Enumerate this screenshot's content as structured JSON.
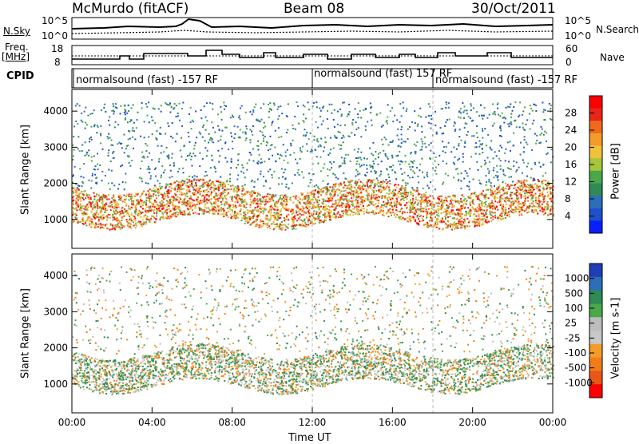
{
  "header": {
    "station": "McMurdo (fitACF)",
    "beam": "Beam 08",
    "date": "30/Oct/2011"
  },
  "top_panels": {
    "nsky_label": "N.Sky",
    "nsky_ticks": [
      "10^5",
      "10^0"
    ],
    "nsearch_label": "N.Search",
    "nsearch_ticks": [
      "10^5",
      "10^0"
    ],
    "freq_label": "Freq.",
    "freq_unit": "[MHz]",
    "freq_ticks": [
      "18",
      "8"
    ],
    "nave_label": "Nave",
    "nave_ticks": [
      "60",
      "0"
    ],
    "cpid_label": "CPID",
    "cpid_segments": [
      {
        "text": "normalsound (fast) -157 RF",
        "start": "00:00"
      },
      {
        "text": "normalsound (fast) 157 RF",
        "start": "12:00"
      },
      {
        "text": "normalsound (fast) -157 RF",
        "start": "18:00"
      }
    ]
  },
  "chart_data": [
    {
      "type": "heatmap",
      "ylabel": "Slant Range [km]",
      "yticks": [
        "4000",
        "3000",
        "2000",
        "1000"
      ],
      "ylim": [
        200,
        4600
      ],
      "xticks": [
        "00:00",
        "04:00",
        "08:00",
        "12:00",
        "16:00",
        "20:00",
        "00:00"
      ],
      "colorbar": {
        "label": "Power [dB]",
        "ticks": [
          "28",
          "24",
          "20",
          "16",
          "12",
          "8",
          "4"
        ],
        "colors": [
          "#ff0000",
          "#e8261a",
          "#f06a1e",
          "#f39c2a",
          "#f0c23a",
          "#a6c53a",
          "#4aa84a",
          "#2f8a54",
          "#2c6fb8",
          "#1f4fc9",
          "#0a1fff"
        ]
      }
    },
    {
      "type": "heatmap",
      "ylabel": "Slant Range [km]",
      "yticks": [
        "4000",
        "3000",
        "2000",
        "1000"
      ],
      "ylim": [
        200,
        4600
      ],
      "xticks": [
        "00:00",
        "04:00",
        "08:00",
        "12:00",
        "16:00",
        "20:00",
        "00:00"
      ],
      "xlabel": "Time UT",
      "colorbar": {
        "label": "Velocity [m s-1]",
        "ticks": [
          "1000",
          "500",
          "100",
          "25",
          "-25",
          "-100",
          "-500",
          "-1000"
        ],
        "colors": [
          "#1f3fb4",
          "#2c6fb8",
          "#2f8a54",
          "#4aa84a",
          "#bdbdbd",
          "#c8c8c8",
          "#f39c2a",
          "#f07d1a",
          "#e8561a",
          "#ff0000"
        ]
      }
    }
  ]
}
